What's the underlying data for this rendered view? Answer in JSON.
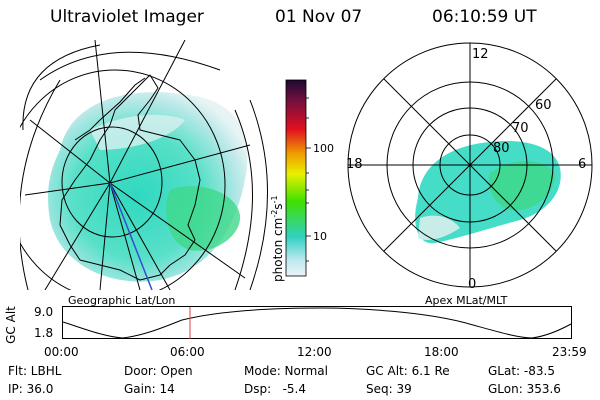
{
  "header": {
    "title": "Ultraviolet Imager",
    "date": "01 Nov 07",
    "time": "06:10:59 UT"
  },
  "left_panel_label": "Geographic Lat/Lon",
  "right_panel_label": "Apex MLat/MLT",
  "colorbar": {
    "unit_main": "photon cm",
    "unit_exp1": "-2",
    "unit_mid": "s",
    "unit_exp2": "-1",
    "ticks": [
      "100",
      "10"
    ]
  },
  "polar": {
    "mlt_labels": [
      "12",
      "18",
      "6",
      "0"
    ],
    "lat_labels": [
      "60",
      "70",
      "80"
    ]
  },
  "altitude_plot": {
    "ylabel": "GC Alt",
    "yticks": [
      "9.0",
      "1.8"
    ],
    "xticks": [
      "00:00",
      "06:00",
      "12:00",
      "18:00",
      "23:59"
    ],
    "current_time_marker": "06:10:59"
  },
  "info": {
    "filter": "Flt: LBHL",
    "ip": "IP: 36.0",
    "door": "Door: Open",
    "gain": "Gain: 14",
    "mode": "Mode: Normal",
    "dsp": "Dsp:   -5.4",
    "gcalt": "GC Alt: 6.1 Re",
    "seq": "Seq: 39",
    "glat": "GLat: -83.5",
    "glon": "GLon: 353.6"
  },
  "colors": {
    "aurora_cyan": "#40e0d0",
    "aurora_green": "#40d870",
    "marker_red": "#e04040"
  }
}
